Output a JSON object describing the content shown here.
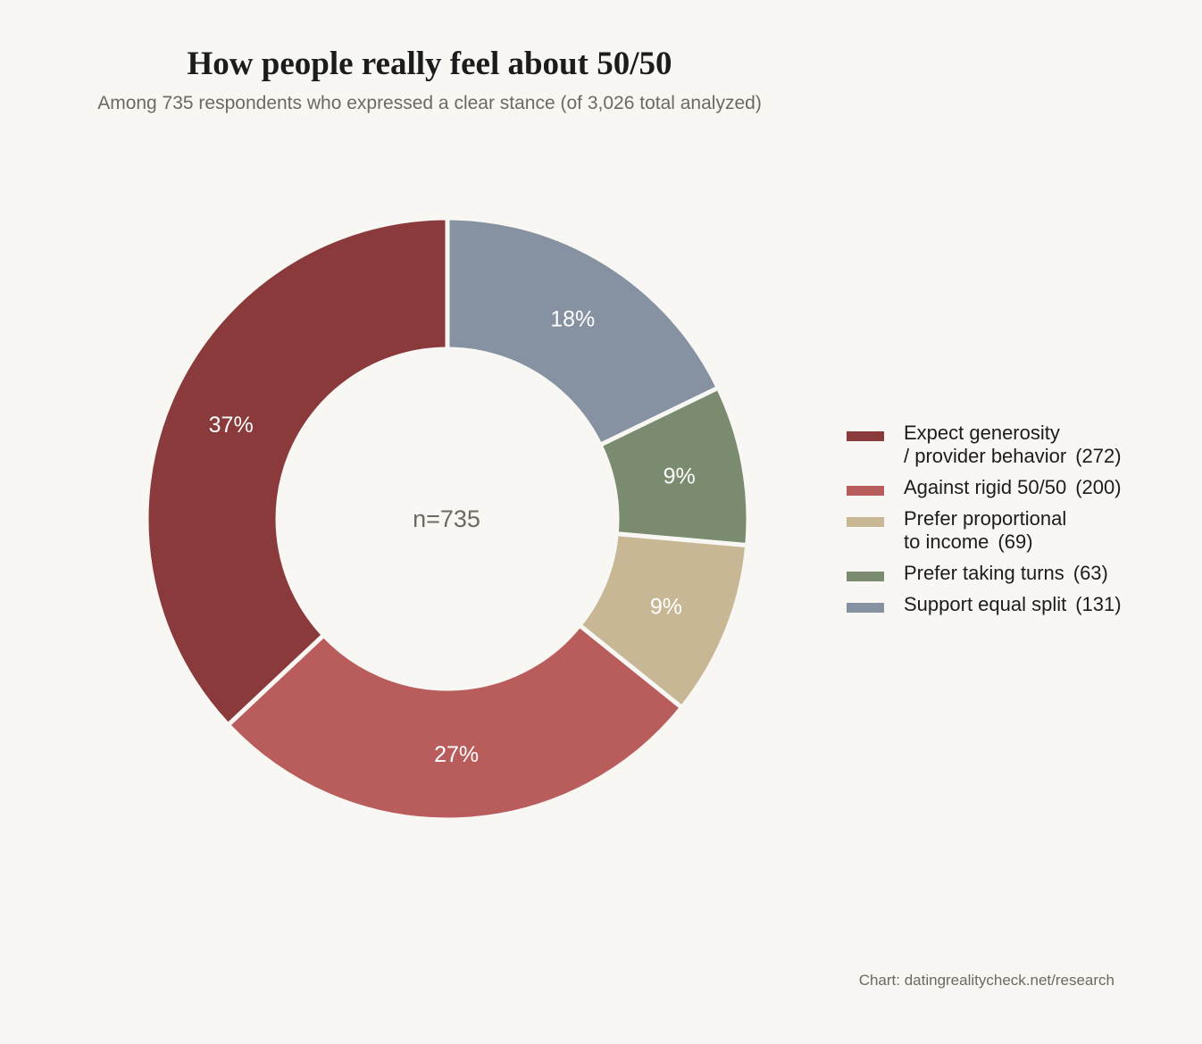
{
  "header": {
    "title": "How people really feel about 50/50",
    "subtitle": "Among 735 respondents who expressed a clear stance (of 3,026 total analyzed)"
  },
  "center_label": "n=735",
  "source": "Chart: datingrealitycheck.net/research",
  "chart_data": {
    "type": "pie",
    "title": "How people really feel about 50/50",
    "subtitle": "Among 735 respondents who expressed a clear stance (of 3,026 total analyzed)",
    "total": 735,
    "legend_position": "right",
    "slices": [
      {
        "label": "Expect generosity / provider behavior",
        "legend_lines": [
          "Expect generosity",
          "/ provider behavior"
        ],
        "count_label": "(272)",
        "value": 272,
        "percent_label": "37%",
        "color": "#8b3a3c"
      },
      {
        "label": "Against rigid 50/50",
        "legend_lines": [
          "Against rigid 50/50"
        ],
        "count_label": "(200)",
        "value": 200,
        "percent_label": "27%",
        "color": "#b95d5c"
      },
      {
        "label": "Prefer proportional to income",
        "legend_lines": [
          "Prefer proportional",
          "to income"
        ],
        "count_label": "(69)",
        "value": 69,
        "percent_label": "9%",
        "color": "#c8b795"
      },
      {
        "label": "Prefer taking turns",
        "legend_lines": [
          "Prefer taking turns"
        ],
        "count_label": "(63)",
        "value": 63,
        "percent_label": "9%",
        "color": "#7b8b6f"
      },
      {
        "label": "Support equal split",
        "legend_lines": [
          "Support equal split"
        ],
        "count_label": "(131)",
        "value": 131,
        "percent_label": "18%",
        "color": "#8692a1"
      }
    ]
  }
}
